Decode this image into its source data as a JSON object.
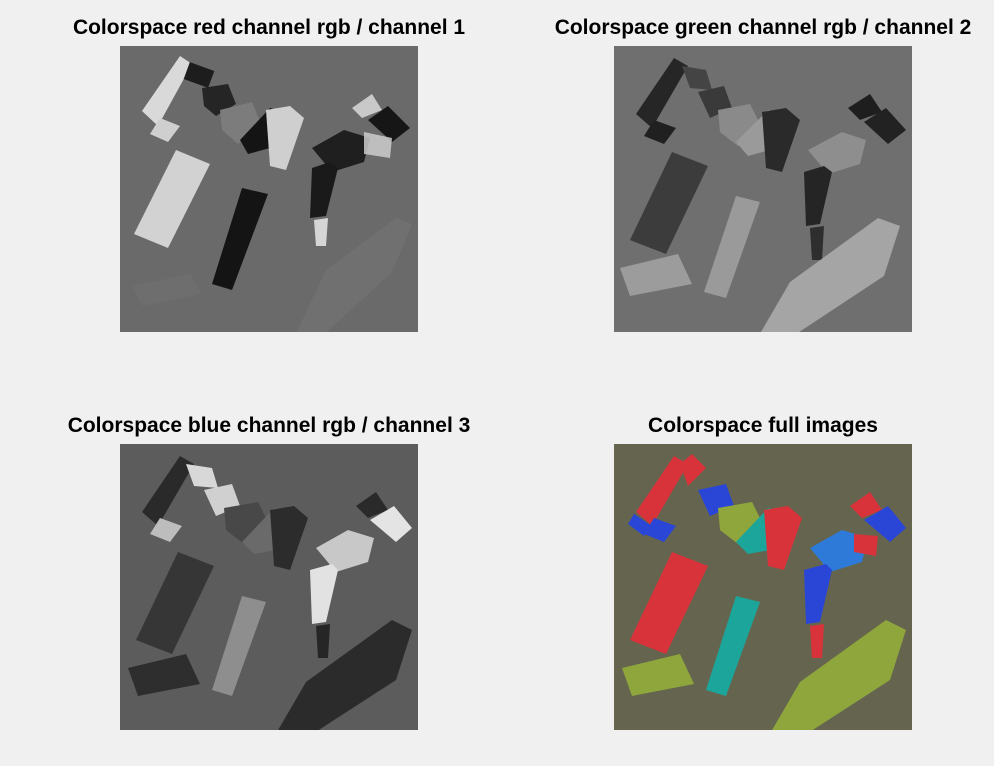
{
  "panels": [
    {
      "title": "Colorspace red channel rgb /  channel 1",
      "image": "red-channel-grayscale-lego-photo"
    },
    {
      "title": "Colorspace green channel rgb /  channel 2",
      "image": "green-channel-grayscale-lego-photo"
    },
    {
      "title": "Colorspace blue channel rgb /  channel 3",
      "image": "blue-channel-grayscale-lego-photo"
    },
    {
      "title": "Colorspace full images",
      "image": "false-color-lego-photo"
    }
  ],
  "colors": {
    "figure_background": "#f0f0f0",
    "red_bg": "#6a6a6a",
    "green_bg": "#6f6f6f",
    "blue_bg": "#5c5c5c",
    "full_bg": "#65654f",
    "lego_red": "#d8333a",
    "lego_blue": "#2a46d6",
    "lego_teal": "#1ca59a",
    "lego_yellow": "#8fa63c",
    "lego_cyan_blue": "#2e7ad8"
  }
}
